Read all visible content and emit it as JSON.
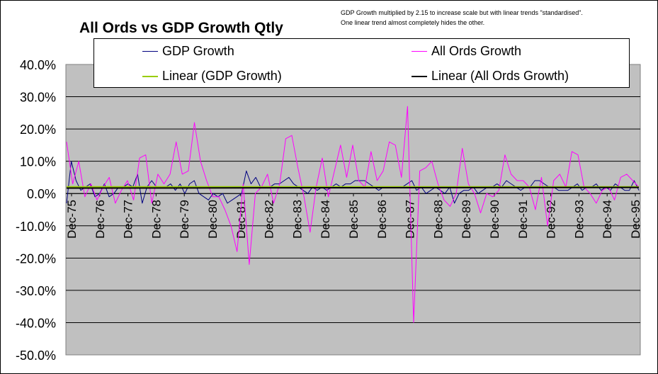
{
  "chart_data": {
    "type": "line",
    "title": "All Ords vs GDP Growth Qtly",
    "note_lines": [
      "GDP Growth multiplied by 2.15 to increase scale but with linear trends \"standardised\".",
      "One linear trend almost completely hides the other."
    ],
    "xlabel": "",
    "ylabel": "",
    "ylim": [
      -50,
      40
    ],
    "y_ticks": [
      "40.0%",
      "30.0%",
      "20.0%",
      "10.0%",
      "0.0%",
      "-10.0%",
      "-20.0%",
      "-30.0%",
      "-40.0%",
      "-50.0%"
    ],
    "y_tick_values": [
      40,
      30,
      20,
      10,
      0,
      -10,
      -20,
      -30,
      -40,
      -50
    ],
    "x_ticks": [
      "Dec-75",
      "Dec-76",
      "Dec-77",
      "Dec-78",
      "Dec-79",
      "Dec-80",
      "Dec-81",
      "Dec-82",
      "Dec-83",
      "Dec-84",
      "Dec-85",
      "Dec-86",
      "Dec-87",
      "Dec-88",
      "Dec-89",
      "Dec-90",
      "Dec-91",
      "Dec-92",
      "Dec-93",
      "Dec-94",
      "Dec-95"
    ],
    "x_start": "Dec-75",
    "x_end": "Dec-95",
    "grid": true,
    "legend_position": "top",
    "series": [
      {
        "name": "GDP Growth",
        "color": "#000080",
        "values": [
          -3,
          10,
          4,
          1,
          2,
          3,
          -1,
          0,
          3,
          -1,
          0,
          2,
          2,
          3,
          2,
          6,
          -3,
          2,
          4,
          2,
          2,
          2,
          3,
          1,
          3,
          0,
          3,
          4,
          0,
          -1,
          -2,
          0,
          -1,
          0,
          -3,
          -2,
          -1,
          0,
          7,
          3,
          5,
          2,
          2,
          2,
          3,
          3,
          4,
          5,
          3,
          2,
          1,
          0,
          2,
          1,
          2,
          1,
          2,
          3,
          2,
          3,
          3,
          4,
          4,
          4,
          3,
          2,
          1,
          2,
          2,
          2,
          2,
          2,
          3,
          4,
          1,
          2,
          0,
          1,
          2,
          1,
          0,
          2,
          -3,
          0,
          1,
          1,
          2,
          0,
          1,
          2,
          2,
          3,
          2,
          4,
          3,
          2,
          1,
          2,
          2,
          4,
          4,
          3,
          2,
          2,
          1,
          1,
          1,
          2,
          3,
          1,
          2,
          2,
          3,
          1,
          2,
          1,
          3,
          2,
          1,
          1,
          4,
          1
        ]
      },
      {
        "name": "All Ords Growth",
        "color": "#ff00ff",
        "values": [
          16,
          3,
          10,
          -1,
          3,
          -2,
          2,
          5,
          -3,
          1,
          4,
          -2,
          11,
          12,
          -3,
          6,
          3,
          6,
          16,
          6,
          7,
          22,
          10,
          4,
          -1,
          -1,
          -5,
          -10,
          -18,
          3,
          -22,
          0,
          2,
          6,
          -3,
          3,
          17,
          18,
          8,
          -1,
          -12,
          2,
          11,
          -1,
          7,
          15,
          5,
          15,
          4,
          2,
          13,
          4,
          7,
          16,
          15,
          5,
          27,
          -40,
          7,
          8,
          10,
          3,
          -2,
          -4,
          0,
          14,
          3,
          0,
          -6,
          0,
          -1,
          1,
          12,
          6,
          4,
          4,
          2,
          -5,
          5,
          -10,
          4,
          6,
          2,
          13,
          12,
          2,
          0,
          -3,
          1,
          2,
          -2,
          5,
          6,
          4,
          2
        ]
      },
      {
        "name": "Linear (GDP Growth)",
        "color": "#99cc00",
        "values": [
          2.1,
          2.1
        ]
      },
      {
        "name": "Linear (All Ords Growth)",
        "color": "#000000",
        "values": [
          1.7,
          1.9
        ]
      }
    ]
  }
}
